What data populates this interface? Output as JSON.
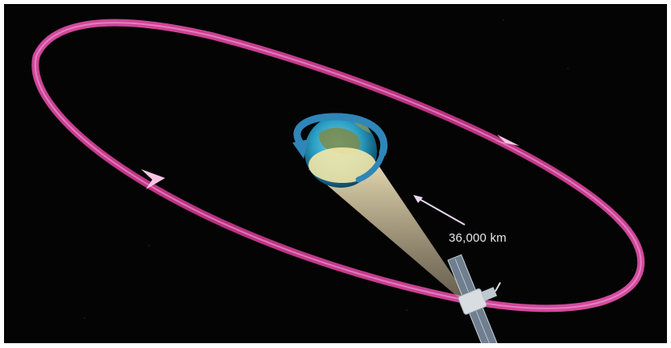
{
  "diagram": {
    "distance_label": "36,000 km"
  },
  "colors": {
    "background": "#040404",
    "orbit": "#c8398f",
    "orbit_highlight": "#f08acb",
    "earth_ocean": "#2a9fc4",
    "earth_land": "#7a8a4a",
    "beam": "#d9c7a0",
    "rotation_arrow": "#2f86b8",
    "label": "#ece6ee"
  },
  "icons": {
    "earth": "earth-globe-icon",
    "satellite": "satellite-icon",
    "rotation": "rotation-arrow-icon"
  }
}
